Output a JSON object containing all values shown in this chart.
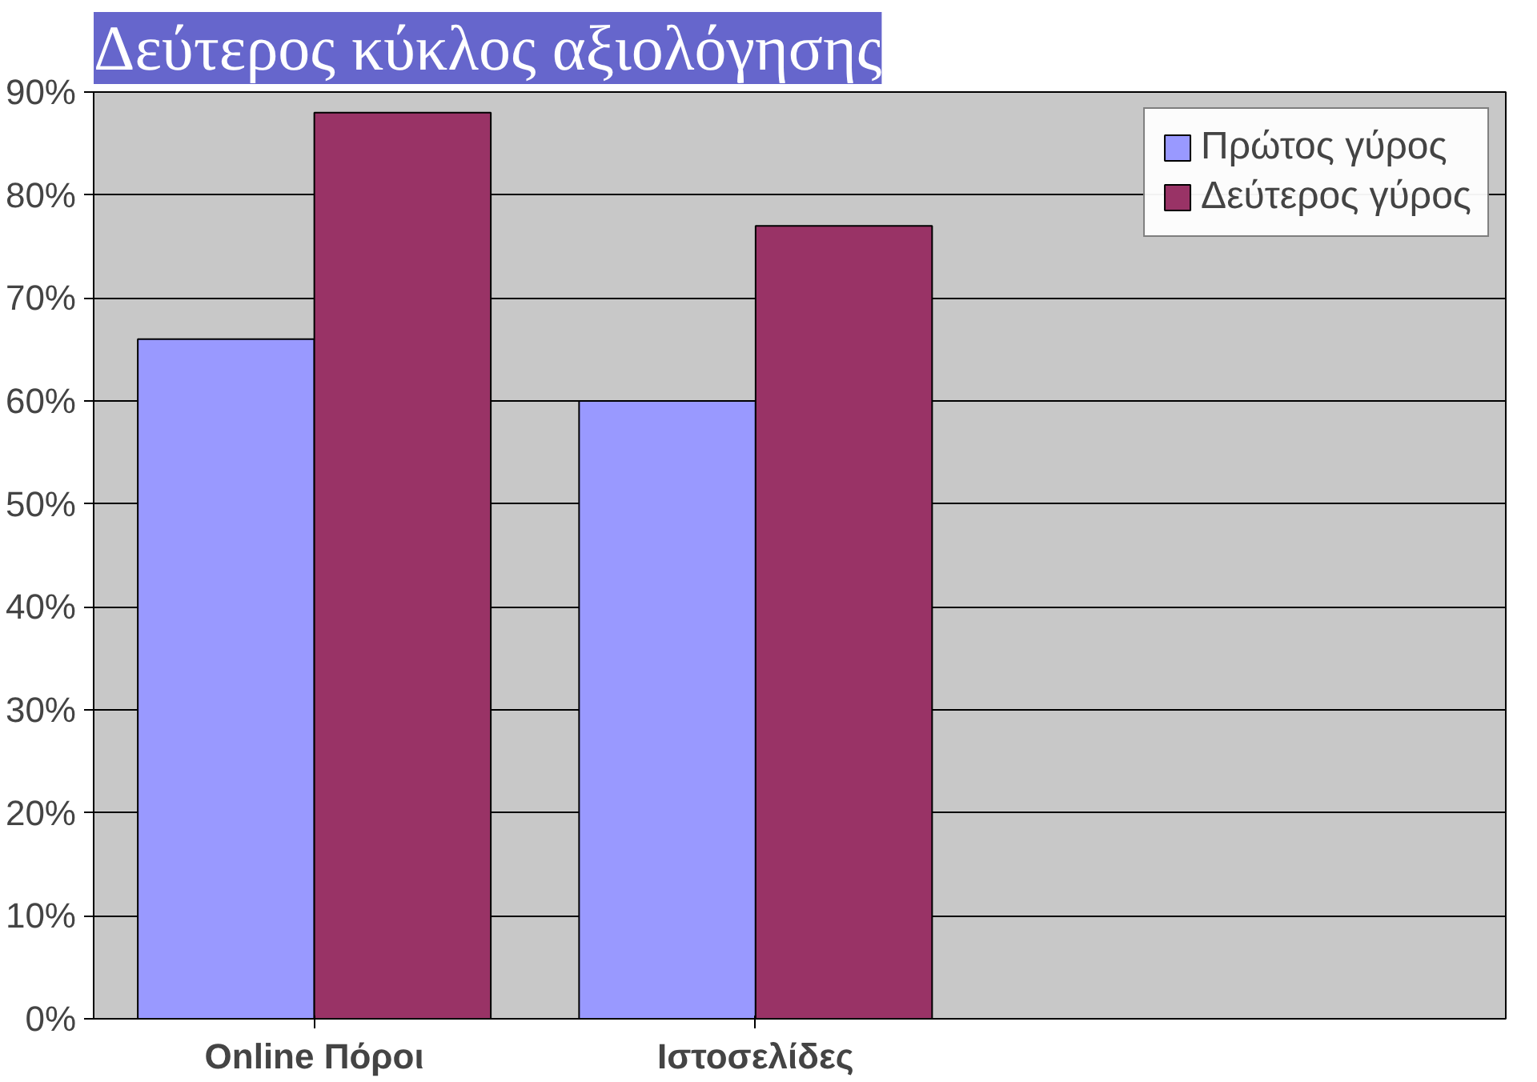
{
  "chart_data": {
    "type": "bar",
    "title": "Δεύτερος κύκλος αξιολόγησης",
    "categories": [
      "Online Πόροι",
      "Ιστοσελίδες"
    ],
    "series": [
      {
        "name": "Πρώτος γύρος",
        "color": "#9999ff",
        "values": [
          66,
          60
        ]
      },
      {
        "name": "Δεύτερος γύρος",
        "color": "#993366",
        "values": [
          88,
          77
        ]
      }
    ],
    "ylim": [
      0,
      90
    ],
    "yticks": [
      {
        "value": 0,
        "label": "0%"
      },
      {
        "value": 10,
        "label": "10%"
      },
      {
        "value": 20,
        "label": "20%"
      },
      {
        "value": 30,
        "label": "30%"
      },
      {
        "value": 40,
        "label": "40%"
      },
      {
        "value": 50,
        "label": "50%"
      },
      {
        "value": 60,
        "label": "60%"
      },
      {
        "value": 70,
        "label": "70%"
      },
      {
        "value": 80,
        "label": "80%"
      },
      {
        "value": 90,
        "label": "90%"
      }
    ],
    "grid": "y",
    "legend": "top right"
  }
}
